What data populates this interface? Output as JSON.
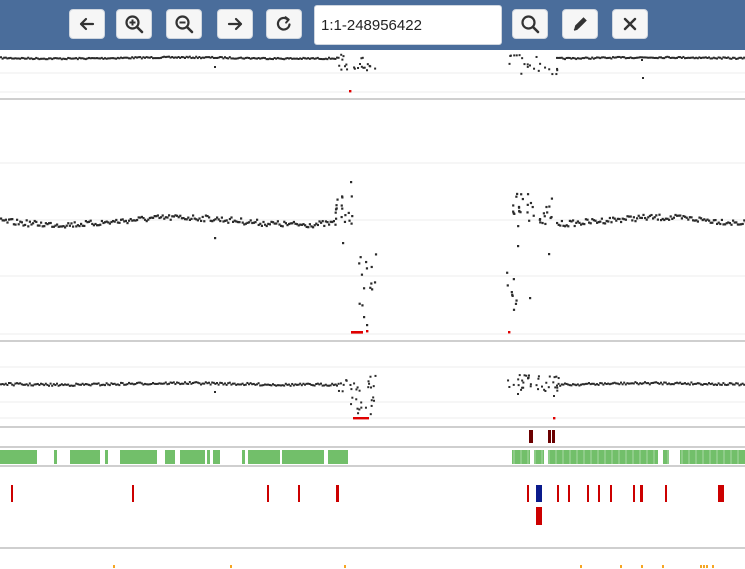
{
  "toolbar": {
    "buttons": [
      {
        "name": "back-button",
        "icon": "arrow-left-icon"
      },
      {
        "name": "zoom-in-button",
        "icon": "zoom-in-icon"
      },
      {
        "name": "zoom-out-button",
        "icon": "zoom-out-icon"
      },
      {
        "name": "forward-button",
        "icon": "arrow-right-icon"
      },
      {
        "name": "refresh-button",
        "icon": "refresh-icon"
      },
      {
        "name": "search-button",
        "icon": "search-icon"
      },
      {
        "name": "edit-button",
        "icon": "pen-icon"
      },
      {
        "name": "close-button",
        "icon": "close-icon"
      }
    ],
    "region": "1:1-248956422"
  },
  "colors": {
    "toolbar_bg": "#4a6d9b",
    "points": "#2b2b2b",
    "highlight": "#e00000",
    "segment_dark": "#6b0000",
    "green_bars": "#72bf6a",
    "red_bars": "#cc0000",
    "blue_bar": "#0a1a8c",
    "orange_ticks": "#f5a623",
    "divider": "#cfcfcf"
  }
}
